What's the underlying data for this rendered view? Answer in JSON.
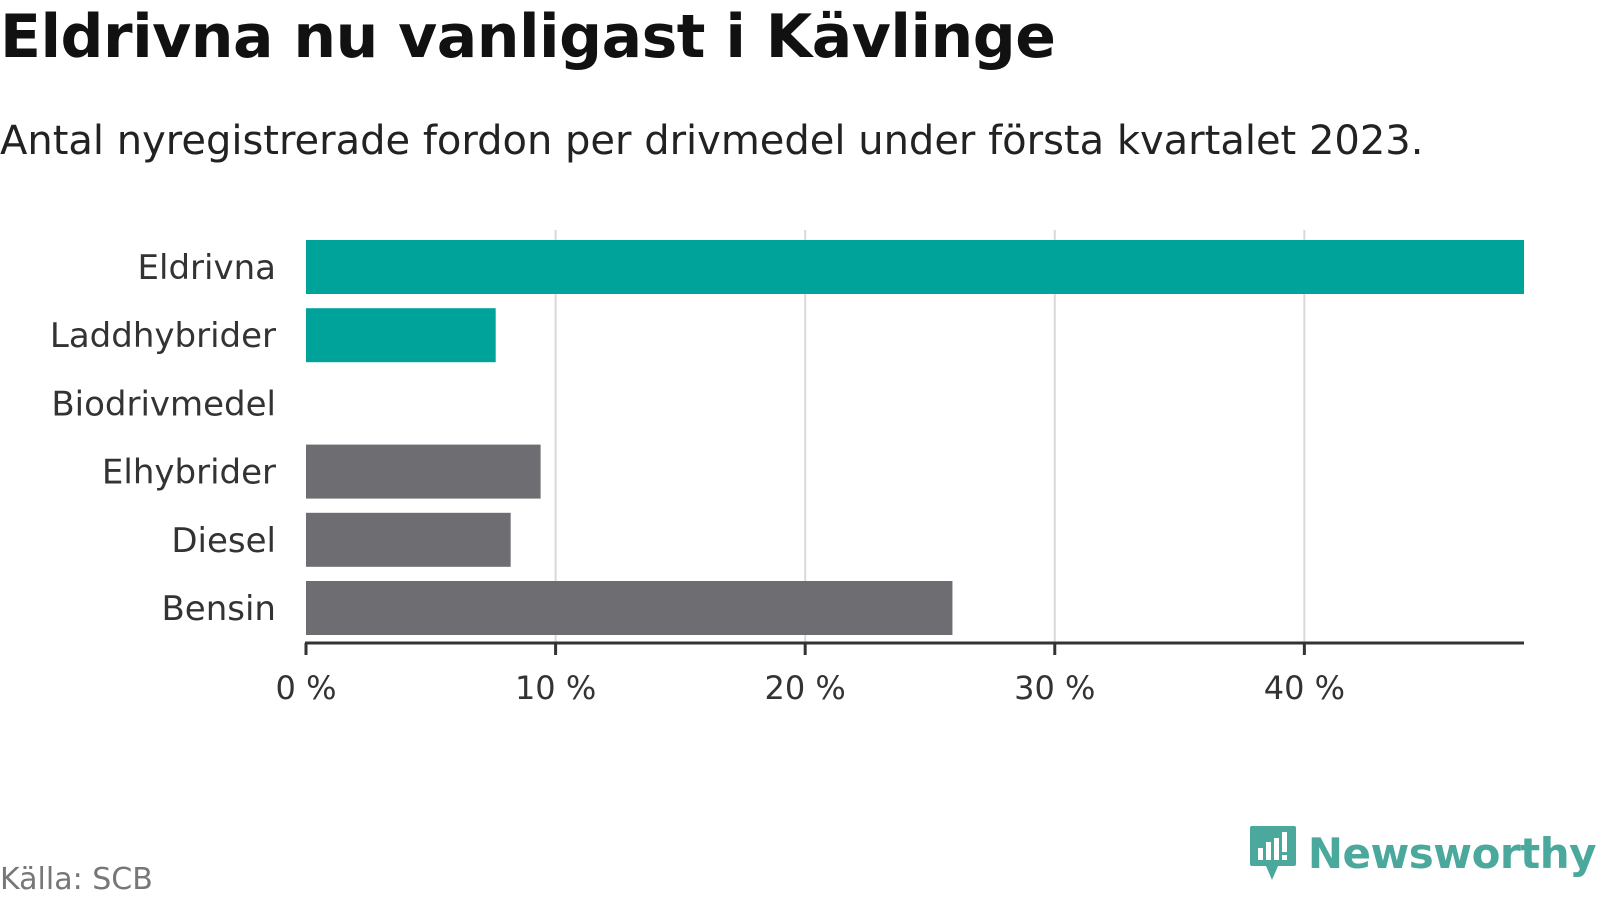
{
  "title": "Eldrivna nu vanligast i Kävlinge",
  "subtitle": "Antal nyregistrerade fordon per drivmedel under första kvartalet 2023.",
  "source": "Källa: SCB",
  "brand": {
    "name": "Newsworthy",
    "icon": "newsworthy-logo-icon",
    "color": "#4aa89c"
  },
  "chart_data": {
    "type": "bar",
    "orientation": "horizontal",
    "categories": [
      "Eldrivna",
      "Laddhybrider",
      "Biodrivmedel",
      "Elhybrider",
      "Diesel",
      "Bensin"
    ],
    "values": [
      48.8,
      7.6,
      0,
      9.4,
      8.2,
      25.9
    ],
    "colors": [
      "#00a39a",
      "#00a39a",
      "#00a39a",
      "#6e6d72",
      "#6e6d72",
      "#6e6d72"
    ],
    "xlim": [
      0,
      48.8
    ],
    "xticks": [
      0,
      10,
      20,
      30,
      40
    ],
    "xtick_labels": [
      "0 %",
      "10 %",
      "20 %",
      "30 %",
      "40 %"
    ],
    "grid": true
  }
}
